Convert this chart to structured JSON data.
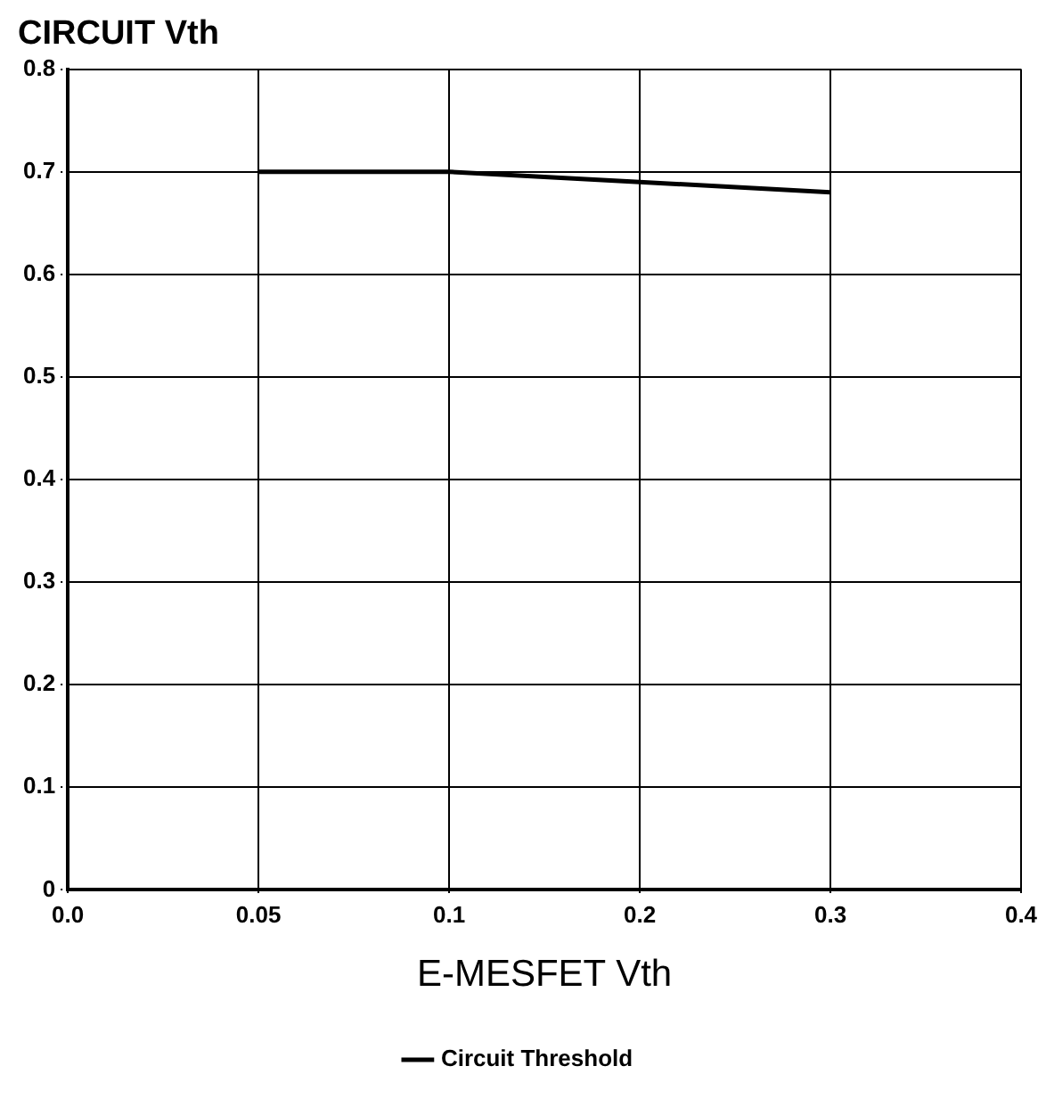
{
  "chart_data": {
    "type": "line",
    "title": "CIRCUIT Vth",
    "xlabel": "E-MESFET Vth",
    "categories": [
      "0.0",
      "0.05",
      "0.1",
      "0.2",
      "0.3",
      "0.4"
    ],
    "series": [
      {
        "name": "Circuit Threshold",
        "color": "#000000",
        "values": [
          null,
          0.7,
          0.7,
          0.69,
          0.68,
          null
        ]
      }
    ],
    "ylim": [
      0,
      0.8
    ],
    "yticks": [
      0,
      0.1,
      0.2,
      0.3,
      0.4,
      0.5,
      0.6,
      0.7,
      0.8
    ],
    "grid": true,
    "legend": "bottom",
    "marker": "none",
    "line_style": "solid"
  }
}
